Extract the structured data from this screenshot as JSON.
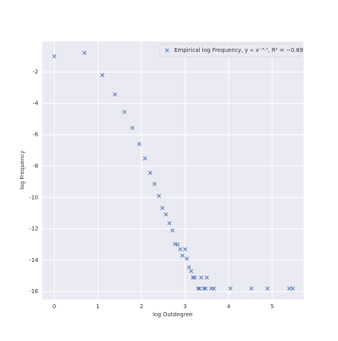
{
  "chart_data": {
    "type": "scatter",
    "x_label": "log Outdegree",
    "y_label": "log Frequency",
    "series": [
      {
        "name": "Empirical log Frequency, y ∝ x⁻³·⁷, R² = −0.89",
        "color": "#4c72b0",
        "x": [
          0,
          0.69,
          1.1,
          1.39,
          1.61,
          1.79,
          1.95,
          2.08,
          2.2,
          2.3,
          2.4,
          2.48,
          2.56,
          2.64,
          2.71,
          2.77,
          2.83,
          2.89,
          2.94,
          3.0,
          3.04,
          3.09,
          3.14,
          3.18,
          3.22,
          3.3,
          3.33,
          3.37,
          3.43,
          3.47,
          3.5,
          3.6,
          3.66,
          4.04,
          4.52,
          4.89,
          5.39,
          5.47
        ],
        "values": [
          -1.0,
          -0.78,
          -2.2,
          -3.43,
          -4.55,
          -5.57,
          -6.59,
          -7.51,
          -8.43,
          -9.14,
          -9.9,
          -10.67,
          -11.08,
          -11.64,
          -12.1,
          -12.97,
          -13.0,
          -13.3,
          -13.7,
          -13.3,
          -13.9,
          -14.45,
          -14.7,
          -15.1,
          -15.1,
          -15.8,
          -15.8,
          -15.1,
          -15.8,
          -15.8,
          -15.1,
          -15.8,
          -15.8,
          -15.8,
          -15.8,
          -15.8,
          -15.8,
          -15.8
        ]
      }
    ],
    "xlim": [
      -0.275,
      5.72
    ],
    "xticks": [
      0,
      1,
      2,
      3,
      4,
      5
    ],
    "ylim": [
      -16.5,
      -0.06
    ],
    "yticks": [
      -2,
      -4,
      -6,
      -8,
      -10,
      -12,
      -14,
      -16
    ],
    "grid": true,
    "legend": "upper right"
  }
}
